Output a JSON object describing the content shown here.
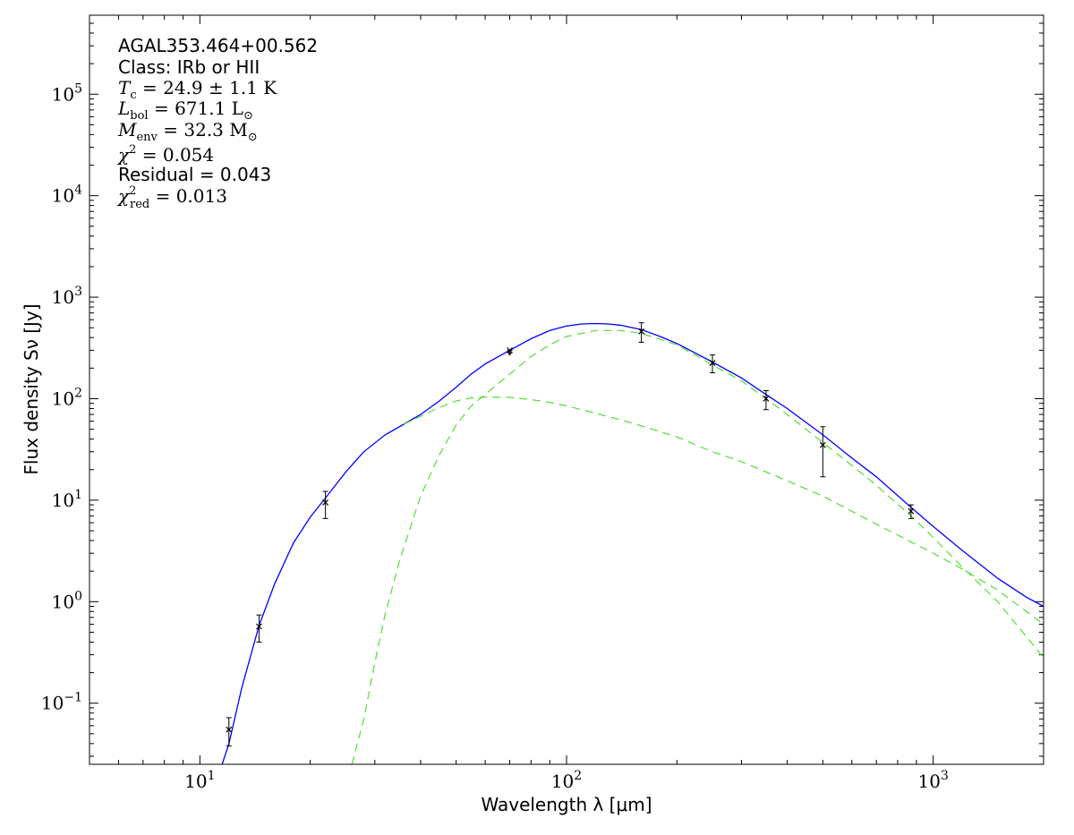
{
  "chart_data": {
    "type": "line",
    "xscale": "log",
    "yscale": "log",
    "xlim": [
      5,
      2000
    ],
    "ylim": [
      0.025,
      600000
    ],
    "xlabel": "Wavelength λ [μm]",
    "ylabel": "Flux density Sν [Jy]",
    "grid": false,
    "legend": "none",
    "x_ticks": [
      {
        "value": 10,
        "mantissa": "10",
        "exp": "1"
      },
      {
        "value": 100,
        "mantissa": "10",
        "exp": "2"
      },
      {
        "value": 1000,
        "mantissa": "10",
        "exp": "3"
      }
    ],
    "y_ticks": [
      {
        "value": 0.1,
        "mantissa": "10",
        "exp": "−1"
      },
      {
        "value": 1,
        "mantissa": "10",
        "exp": "0"
      },
      {
        "value": 10,
        "mantissa": "10",
        "exp": "1"
      },
      {
        "value": 100,
        "mantissa": "10",
        "exp": "2"
      },
      {
        "value": 1000,
        "mantissa": "10",
        "exp": "3"
      },
      {
        "value": 10000,
        "mantissa": "10",
        "exp": "4"
      },
      {
        "value": 100000,
        "mantissa": "10",
        "exp": "5"
      }
    ],
    "annotations": {
      "source": "AGAL353.464+00.562",
      "class": "Class: IRb or HII",
      "tc": {
        "symbol": "T",
        "sub": "c",
        "text": " = 24.9 ± 1.1 K"
      },
      "lbol": {
        "symbol": "L",
        "sub": "bol",
        "text": " = 671.1 L",
        "unit_sub": "⊙"
      },
      "menv": {
        "symbol": "M",
        "sub": "env",
        "text": " = 32.3 M",
        "unit_sub": "⊙"
      },
      "chi2": {
        "symbol": "χ",
        "sup": "2",
        "text": " = 0.054"
      },
      "residual": "Residual = 0.043",
      "chi2red": {
        "symbol": "χ",
        "sup": "2",
        "sub": "red",
        "text": " = 0.013"
      }
    },
    "colors": {
      "total_fit": "#0000ff",
      "components": "#55dd33",
      "data": "#000000"
    },
    "measurements": [
      {
        "x": 12,
        "y": 0.055,
        "yerr_low": 0.038,
        "yerr_high": 0.072,
        "upper_limit": false
      },
      {
        "x": 14.5,
        "y": 0.57,
        "yerr_low": 0.4,
        "yerr_high": 0.74,
        "upper_limit": false
      },
      {
        "x": 22,
        "y": 9.5,
        "yerr_low": 6.6,
        "yerr_high": 12.2,
        "upper_limit": false
      },
      {
        "x": 70,
        "y": 300,
        "yerr_low": 270,
        "yerr_high": 300,
        "upper_limit": true
      },
      {
        "x": 160,
        "y": 460,
        "yerr_low": 360,
        "yerr_high": 560,
        "upper_limit": false
      },
      {
        "x": 250,
        "y": 225,
        "yerr_low": 180,
        "yerr_high": 270,
        "upper_limit": false
      },
      {
        "x": 350,
        "y": 100,
        "yerr_low": 78,
        "yerr_high": 120,
        "upper_limit": false
      },
      {
        "x": 500,
        "y": 35,
        "yerr_low": 17,
        "yerr_high": 53,
        "upper_limit": false
      },
      {
        "x": 870,
        "y": 7.8,
        "yerr_low": 6.6,
        "yerr_high": 9.0,
        "upper_limit": false
      }
    ],
    "series": [
      {
        "style": "solid",
        "x": [
          11.5,
          12,
          13,
          14.5,
          16,
          18,
          20,
          22,
          25,
          28,
          32,
          36,
          40,
          45,
          50,
          55,
          60,
          70,
          80,
          90,
          100,
          110,
          120,
          130,
          140,
          160,
          180,
          200,
          250,
          300,
          350,
          400,
          500,
          600,
          700,
          870,
          1000,
          1200,
          1500,
          1800,
          2000
        ],
        "y": [
          0.025,
          0.04,
          0.14,
          0.58,
          1.5,
          3.8,
          6.8,
          10.5,
          19,
          30,
          44,
          56,
          70,
          95,
          130,
          175,
          220,
          300,
          390,
          470,
          520,
          545,
          550,
          545,
          530,
          480,
          410,
          350,
          230,
          160,
          110,
          80,
          44,
          26,
          17,
          8.5,
          5.5,
          3.2,
          1.7,
          1.1,
          0.9
        ]
      },
      {
        "style": "dashed",
        "x": [
          36,
          40,
          45,
          50,
          55,
          60,
          70,
          80,
          90,
          100,
          120,
          150,
          200,
          250,
          300,
          400,
          500,
          700,
          1000,
          1200,
          1500,
          2000
        ],
        "y": [
          56,
          67,
          82,
          95,
          102,
          104,
          103,
          98,
          92,
          85,
          72,
          58,
          42,
          30,
          24,
          15.5,
          11,
          5.8,
          3.0,
          2.1,
          1.3,
          0.6
        ]
      },
      {
        "style": "dashed",
        "x": [
          26,
          28,
          30,
          32,
          35,
          40,
          45,
          50,
          55,
          60,
          65,
          70,
          80,
          90,
          100,
          120,
          140,
          160,
          200,
          250,
          300,
          350,
          400,
          500,
          600,
          700,
          870,
          1000,
          1200,
          1500,
          2000
        ],
        "y": [
          0.025,
          0.07,
          0.25,
          0.75,
          2.5,
          11,
          28,
          55,
          85,
          110,
          140,
          175,
          260,
          340,
          410,
          470,
          470,
          440,
          340,
          215,
          150,
          100,
          70,
          37,
          22,
          14,
          7,
          4.3,
          2.2,
          1.0,
          0.28
        ]
      }
    ]
  }
}
